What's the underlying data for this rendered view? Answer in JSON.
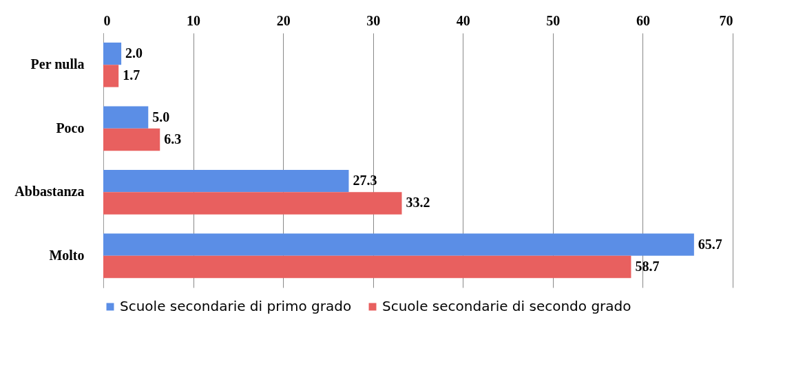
{
  "chart_data": {
    "type": "bar",
    "orientation": "horizontal",
    "categories": [
      "Per nulla",
      "Poco",
      "Abbastanza",
      "Molto"
    ],
    "series": [
      {
        "name": "Scuole secondarie di primo grado",
        "color": "#5b8ee6",
        "values": [
          2.0,
          5.0,
          27.3,
          65.7
        ],
        "value_labels": [
          "2.0",
          "5.0",
          "27.3",
          "65.7"
        ]
      },
      {
        "name": "Scuole secondarie di secondo grado",
        "color": "#e8605f",
        "values": [
          1.7,
          6.3,
          33.2,
          58.7
        ],
        "value_labels": [
          "1.7",
          "6.3",
          "33.2",
          "58.7"
        ]
      }
    ],
    "xlim": [
      0,
      70
    ],
    "xticks": [
      0,
      10,
      20,
      30,
      40,
      50,
      60,
      70
    ],
    "grid": "x",
    "legend": "bottom"
  }
}
